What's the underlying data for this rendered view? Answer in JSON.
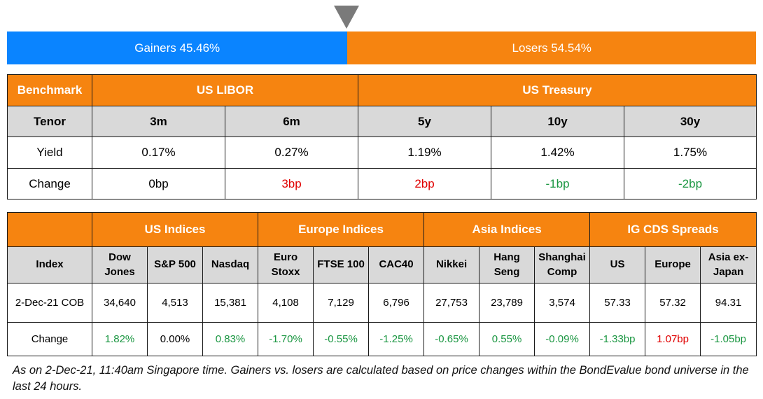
{
  "breadth": {
    "gainers_label": "Gainers 45.46%",
    "losers_label": "Losers 54.54%",
    "gainers_pct": 45.46,
    "losers_pct": 54.54,
    "gainers_color": "#0a84ff",
    "losers_color": "#f68410"
  },
  "benchmark_table": {
    "col_benchmark": "Benchmark",
    "group_libor": "US LIBOR",
    "group_treasury": "US Treasury",
    "row_tenor_label": "Tenor",
    "tenors": [
      "3m",
      "6m",
      "5y",
      "10y",
      "30y"
    ],
    "row_yield_label": "Yield",
    "yields": [
      "0.17%",
      "0.27%",
      "1.19%",
      "1.42%",
      "1.75%"
    ],
    "row_change_label": "Change",
    "changes": [
      "0bp",
      "3bp",
      "2bp",
      "-1bp",
      "-2bp"
    ]
  },
  "indices_table": {
    "group_us": "US Indices",
    "group_europe": "Europe Indices",
    "group_asia": "Asia Indices",
    "group_cds": "IG CDS Spreads",
    "col_index": "Index",
    "names": [
      {
        "l1": "Dow",
        "l2": "Jones"
      },
      {
        "l1": "S&P 500",
        "l2": ""
      },
      {
        "l1": "Nasdaq",
        "l2": ""
      },
      {
        "l1": "Euro",
        "l2": "Stoxx"
      },
      {
        "l1": "FTSE 100",
        "l2": ""
      },
      {
        "l1": "CAC40",
        "l2": ""
      },
      {
        "l1": "Nikkei",
        "l2": ""
      },
      {
        "l1": "Hang",
        "l2": "Seng"
      },
      {
        "l1": "Shanghai",
        "l2": "Comp"
      },
      {
        "l1": "US",
        "l2": ""
      },
      {
        "l1": "Europe",
        "l2": ""
      },
      {
        "l1": "Asia ex-",
        "l2": "Japan"
      }
    ],
    "row_cob_label": "2-Dec-21 COB",
    "values": [
      "34,640",
      "4,513",
      "15,381",
      "4,108",
      "7,129",
      "6,796",
      "27,753",
      "23,789",
      "3,574",
      "57.33",
      "57.32",
      "94.31"
    ],
    "row_change_label": "Change",
    "changes": [
      "1.82%",
      "0.00%",
      "0.83%",
      "-1.70%",
      "-0.55%",
      "-1.25%",
      "-0.65%",
      "0.55%",
      "-0.09%",
      "-1.33bp",
      "1.07bp",
      "-1.05bp"
    ]
  },
  "footnote": "As on 2-Dec-21, 11:40am Singapore time. Gainers vs. losers are calculated based on price changes within the BondEvalue bond universe in the last 24 hours."
}
